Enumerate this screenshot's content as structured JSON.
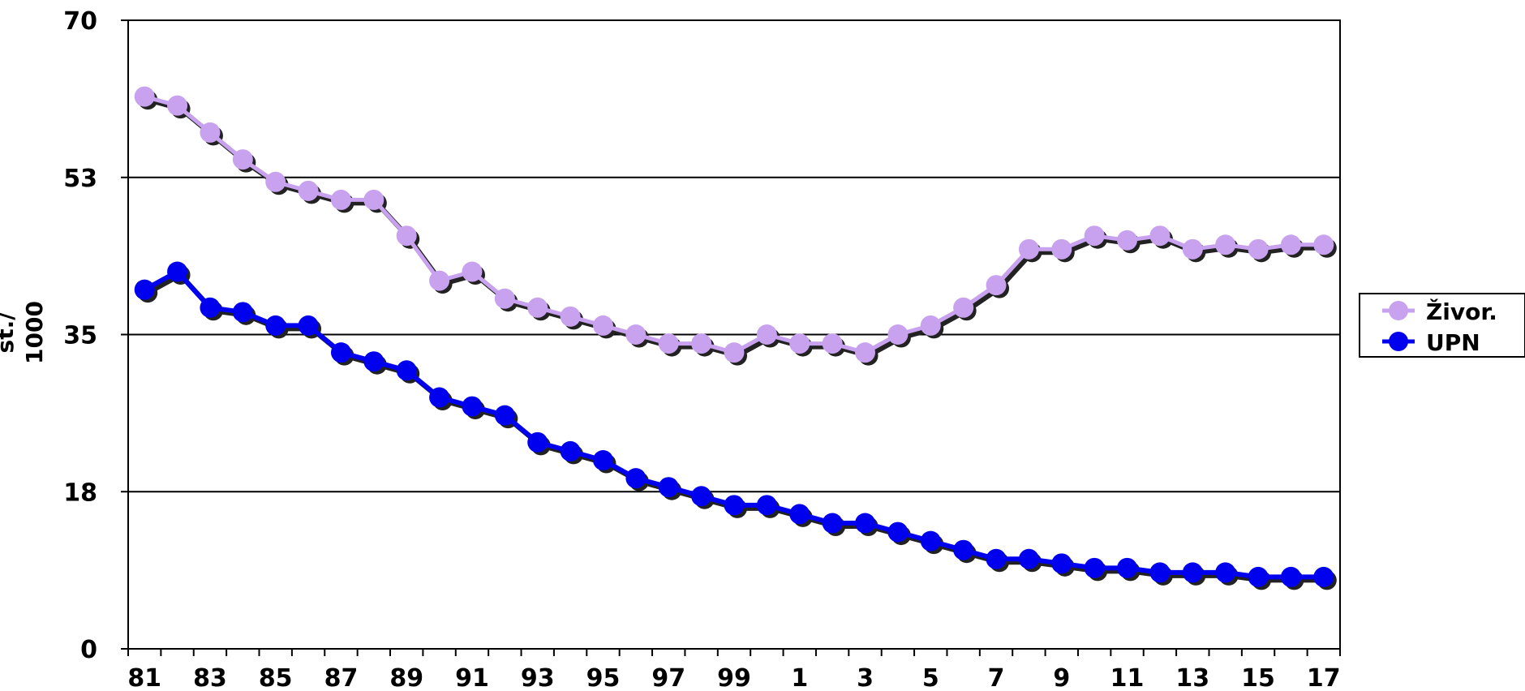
{
  "chart_data": {
    "type": "line",
    "ylabel_lines": [
      "st./",
      "1000"
    ],
    "ylim": [
      0,
      70
    ],
    "yticks": [
      "0",
      "18",
      "35",
      "53",
      "70"
    ],
    "ytick_values": [
      0,
      17.5,
      35,
      52.5,
      70
    ],
    "x": [
      "81",
      "82",
      "83",
      "84",
      "85",
      "86",
      "87",
      "88",
      "89",
      "90",
      "91",
      "92",
      "93",
      "94",
      "95",
      "96",
      "97",
      "98",
      "99",
      "0",
      "1",
      "2",
      "3",
      "4",
      "5",
      "6",
      "7",
      "8",
      "9",
      "10",
      "11",
      "12",
      "13",
      "14",
      "15",
      "16",
      "17"
    ],
    "xtick_labels": [
      "81",
      "83",
      "85",
      "87",
      "89",
      "91",
      "93",
      "95",
      "97",
      "99",
      "1",
      "3",
      "5",
      "7",
      "9",
      "11",
      "13",
      "15",
      "17"
    ],
    "grid": true,
    "legend_position": "right",
    "series": [
      {
        "name": "Živor.",
        "color": "#c8a2ee",
        "values": [
          61.5,
          60.5,
          57.5,
          54.5,
          52,
          51,
          50,
          50,
          46,
          41,
          42,
          39,
          38,
          37,
          36,
          35,
          34,
          34,
          33,
          35,
          34,
          34,
          33,
          35,
          36,
          38,
          40.5,
          44.5,
          44.5,
          46,
          45.5,
          46,
          44.5,
          45,
          44.5,
          45,
          45
        ]
      },
      {
        "name": "UPN",
        "color": "#0000ee",
        "values": [
          40,
          42,
          38,
          37.5,
          36,
          36,
          33,
          32,
          31,
          28,
          27,
          26,
          23,
          22,
          21,
          19,
          18,
          17,
          16,
          16,
          15,
          14,
          14,
          13,
          12,
          11,
          10,
          10,
          9.5,
          9,
          9,
          8.5,
          8.5,
          8.5,
          8,
          8,
          8
        ]
      }
    ]
  }
}
